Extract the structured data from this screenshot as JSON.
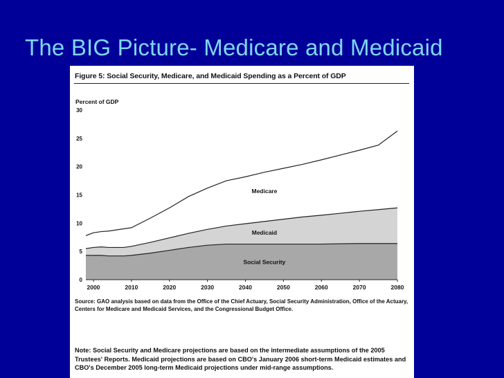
{
  "slide": {
    "title": "The BIG Picture- Medicare and Medicaid"
  },
  "figure": {
    "title": "Figure 5: Social Security, Medicare, and Medicaid Spending as a Percent of GDP",
    "source": "Source: GAO analysis based on data from the Office of the Chief Actuary, Social Security Administration, Office of the Actuary, Centers for Medicare and Medicaid Services, and the Congressional Budget Office.",
    "note": "Note: Social Security and Medicare projections are based on the intermediate assumptions of the 2005 Trustees' Reports. Medicaid projections are based on CBO's January 2006 short-term Medicaid estimates and CBO's December 2005 long-term Medicaid projections under mid-range assumptions."
  },
  "chart_data": {
    "type": "area",
    "stacked": true,
    "ylabel": "Percent of GDP",
    "xlabel": "",
    "ylim": [
      0,
      30
    ],
    "yticks": [
      0,
      5,
      10,
      15,
      20,
      25,
      30
    ],
    "xticks": [
      2000,
      2010,
      2020,
      2030,
      2040,
      2050,
      2060,
      2070,
      2080
    ],
    "xlim": [
      1998,
      2080
    ],
    "grid": false,
    "x": [
      1998,
      2000,
      2002,
      2004,
      2006,
      2008,
      2010,
      2015,
      2020,
      2025,
      2030,
      2035,
      2040,
      2045,
      2050,
      2055,
      2060,
      2065,
      2070,
      2075,
      2080
    ],
    "series": [
      {
        "name": "Social Security",
        "color": "#a8a8a8",
        "values": [
          4.3,
          4.3,
          4.3,
          4.2,
          4.2,
          4.2,
          4.3,
          4.7,
          5.2,
          5.7,
          6.1,
          6.3,
          6.3,
          6.3,
          6.3,
          6.3,
          6.3,
          6.35,
          6.4,
          6.4,
          6.4
        ]
      },
      {
        "name": "Medicaid",
        "color": "#d4d4d4",
        "values": [
          1.2,
          1.4,
          1.5,
          1.5,
          1.5,
          1.5,
          1.6,
          1.9,
          2.2,
          2.5,
          2.8,
          3.2,
          3.6,
          4.0,
          4.4,
          4.8,
          5.1,
          5.4,
          5.7,
          6.0,
          6.3
        ]
      },
      {
        "name": "Medicare",
        "color": "#ffffff",
        "values": [
          2.3,
          2.6,
          2.7,
          2.9,
          3.1,
          3.3,
          3.3,
          4.3,
          5.3,
          6.5,
          7.3,
          8.0,
          8.3,
          8.7,
          9.0,
          9.3,
          9.8,
          10.3,
          10.8,
          11.4,
          13.6
        ]
      }
    ]
  }
}
